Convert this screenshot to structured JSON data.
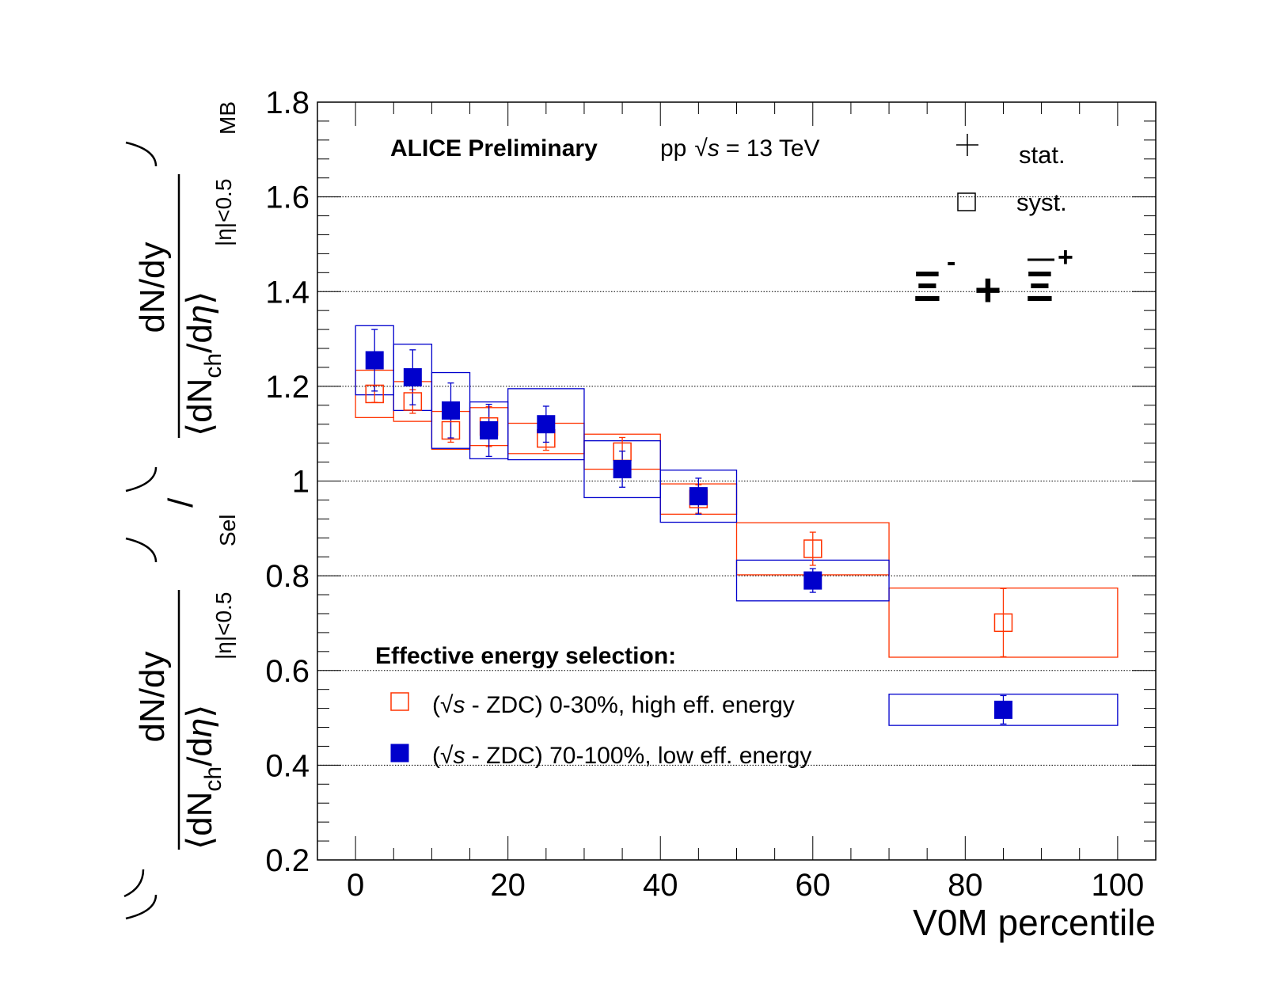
{
  "chart_data": {
    "type": "scatter",
    "xlabel": "V0M percentile",
    "ylabel": {
      "numerator": "dN/dy",
      "denominator_prefix": "dN",
      "denominator_sub": "ch",
      "denominator_mid": "/d",
      "denominator_eta": "η",
      "range_sub": "|η|<0.5",
      "sel_sub": "Sel",
      "mb_sub": "MB"
    },
    "xlim": [
      -5,
      105
    ],
    "ylim": [
      0.2,
      1.8
    ],
    "xticks": [
      0,
      20,
      40,
      60,
      80,
      100
    ],
    "xtick_labels": [
      "0",
      "20",
      "40",
      "60",
      "80",
      "100"
    ],
    "yticks": [
      0.2,
      0.4,
      0.6,
      0.8,
      1.0,
      1.2,
      1.4,
      1.6,
      1.8
    ],
    "ytick_labels": [
      "0.2",
      "0.4",
      "0.6",
      "0.8",
      "1",
      "1.2",
      "1.4",
      "1.6",
      "1.8"
    ],
    "grid": "horizontal-dotted",
    "header": {
      "experiment": "ALICE Preliminary",
      "system_prefix": "pp",
      "sqrt": "√",
      "s": "s",
      "energy": "= 13 TeV"
    },
    "error_legend": {
      "stat": "stat.",
      "syst": "syst."
    },
    "particle": {
      "xi": "Ξ",
      "minus": "-",
      "plus_sign": "+",
      "plus": "+"
    },
    "legend": {
      "title": "Effective energy selection:",
      "position": "bottom-left",
      "entries": [
        {
          "open": "(",
          "sqrt": "√",
          "s": "s",
          "rest": " - ZDC) 0-30%, high eff. energy"
        },
        {
          "open": "(",
          "sqrt": "√",
          "s": "s",
          "rest": " - ZDC) 70-100%, low eff. energy"
        }
      ]
    },
    "series": [
      {
        "name": "(√s - ZDC) 0-30%, high eff. energy",
        "color": "#ff3300",
        "marker": "open-square",
        "x": [
          2.5,
          7.5,
          12.5,
          17.5,
          25,
          35,
          45,
          60,
          85
        ],
        "y": [
          1.184,
          1.168,
          1.107,
          1.115,
          1.09,
          1.062,
          0.962,
          0.857,
          0.701
        ],
        "x_low": [
          0,
          5,
          10,
          15,
          20,
          30,
          40,
          50,
          70
        ],
        "x_high": [
          5,
          10,
          15,
          20,
          30,
          40,
          50,
          70,
          100
        ],
        "stat": [
          0.018,
          0.025,
          0.025,
          0.042,
          0.025,
          0.03,
          0.03,
          0.035,
          0.072
        ],
        "syst": [
          0.05,
          0.042,
          0.04,
          0.04,
          0.032,
          0.037,
          0.032,
          0.055,
          0.073
        ]
      },
      {
        "name": "(√s - ZDC) 70-100%, low eff. energy",
        "color": "#0000cc",
        "marker": "filled-square",
        "x": [
          2.5,
          7.5,
          12.5,
          17.5,
          25,
          35,
          45,
          60,
          85
        ],
        "y": [
          1.255,
          1.219,
          1.149,
          1.107,
          1.12,
          1.025,
          0.968,
          0.79,
          0.517
        ],
        "x_low": [
          0,
          5,
          10,
          15,
          20,
          30,
          40,
          50,
          70
        ],
        "x_high": [
          5,
          10,
          15,
          20,
          30,
          40,
          50,
          70,
          100
        ],
        "stat": [
          0.065,
          0.058,
          0.058,
          0.055,
          0.038,
          0.038,
          0.038,
          0.025,
          0.03
        ],
        "syst": [
          0.073,
          0.07,
          0.08,
          0.06,
          0.075,
          0.06,
          0.055,
          0.043,
          0.033
        ]
      }
    ]
  }
}
